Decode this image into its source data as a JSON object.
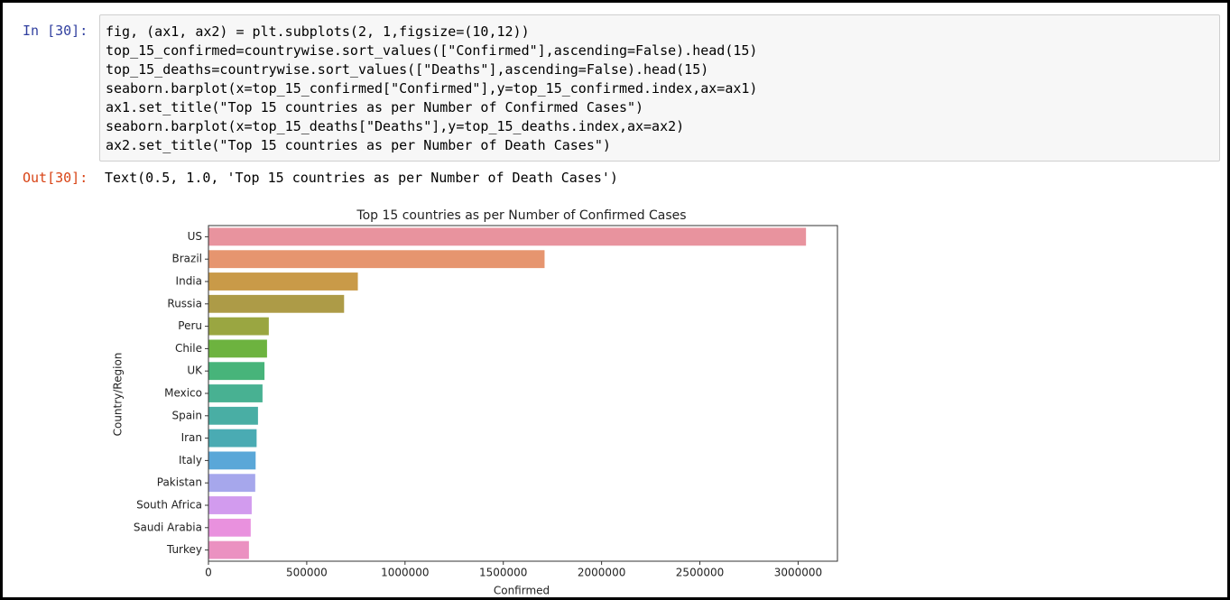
{
  "cell": {
    "prompt_in": "In [30]:",
    "code": [
      "fig, (ax1, ax2) = plt.subplots(2, 1,figsize=(10,12))",
      "top_15_confirmed=countrywise.sort_values([\"Confirmed\"],ascending=False).head(15)",
      "top_15_deaths=countrywise.sort_values([\"Deaths\"],ascending=False).head(15)",
      "seaborn.barplot(x=top_15_confirmed[\"Confirmed\"],y=top_15_confirmed.index,ax=ax1)",
      "ax1.set_title(\"Top 15 countries as per Number of Confirmed Cases\")",
      "seaborn.barplot(x=top_15_deaths[\"Deaths\"],y=top_15_deaths.index,ax=ax2)",
      "ax2.set_title(\"Top 15 countries as per Number of Death Cases\")"
    ],
    "prompt_out": "Out[30]:",
    "output": "Text(0.5, 1.0, 'Top 15 countries as per Number of Death Cases')"
  },
  "chart_data": {
    "type": "barh",
    "title": "Top 15 countries as per Number of Confirmed Cases",
    "x_label": "Confirmed",
    "y_label": "Country/Region",
    "categories": [
      "US",
      "Brazil",
      "India",
      "Russia",
      "Peru",
      "Chile",
      "UK",
      "Mexico",
      "Spain",
      "Iran",
      "Italy",
      "Pakistan",
      "South Africa",
      "Saudi Arabia",
      "Turkey"
    ],
    "values": [
      3040000,
      1710000,
      760000,
      690000,
      307000,
      298000,
      285000,
      275000,
      252000,
      245000,
      240000,
      238000,
      220000,
      215000,
      206000
    ],
    "colors": [
      "#e8939e",
      "#e6956f",
      "#c99a48",
      "#ad9b47",
      "#9aa641",
      "#6db33f",
      "#47b47a",
      "#48b192",
      "#49aea4",
      "#4aabb3",
      "#5aa7d8",
      "#a6a7ec",
      "#d29bee",
      "#e991de",
      "#eb91c1"
    ],
    "xlim": [
      0,
      3200000
    ],
    "xticks": [
      0,
      500000,
      1000000,
      1500000,
      2000000,
      2500000,
      3000000
    ]
  }
}
